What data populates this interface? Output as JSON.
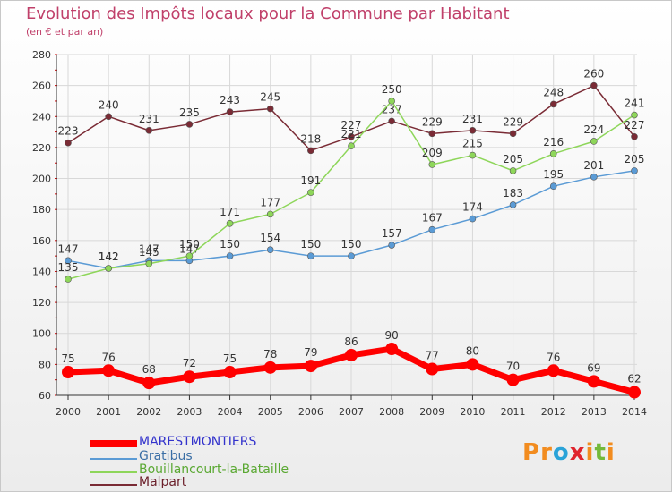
{
  "header": {
    "title": "Evolution des Impôts locaux pour la Commune par Habitant",
    "subtitle": "(en € et par an)"
  },
  "logo": {
    "text": "Proxiti",
    "letters": [
      "P",
      "r",
      "o",
      "x",
      "i",
      "t",
      "i"
    ],
    "colors": [
      "#f28c1f",
      "#f28c1f",
      "#2aa3d8",
      "#e0242d",
      "#f28c1f",
      "#74b93a",
      "#f28c1f"
    ]
  },
  "chart_data": {
    "type": "line",
    "title": "Evolution des Impôts locaux pour la Commune par Habitant",
    "subtitle": "(en € et par an)",
    "xlabel": "",
    "ylabel": "",
    "ylim": [
      60,
      280
    ],
    "yticks": [
      60,
      80,
      100,
      120,
      140,
      160,
      180,
      200,
      220,
      240,
      260,
      280
    ],
    "grid": true,
    "legend": "bottom-left",
    "categories": [
      "2000",
      "2001",
      "2002",
      "2003",
      "2004",
      "2005",
      "2006",
      "2007",
      "2008",
      "2009",
      "2010",
      "2011",
      "2012",
      "2013",
      "2014"
    ],
    "series": [
      {
        "name": "MARESTMONTIERS",
        "color": "#ff0000",
        "labelColor": "#3333cc",
        "values": [
          75,
          76,
          68,
          72,
          75,
          78,
          79,
          86,
          90,
          77,
          80,
          70,
          76,
          69,
          62
        ]
      },
      {
        "name": "Gratibus",
        "color": "#5b9bd5",
        "labelColor": "#3a6ea5",
        "values": [
          147,
          142,
          147,
          147,
          150,
          154,
          150,
          150,
          157,
          167,
          174,
          183,
          195,
          201,
          205
        ]
      },
      {
        "name": "Bouillancourt-la-Bataille",
        "color": "#8ed65a",
        "labelColor": "#5aa832",
        "values": [
          135,
          142,
          145,
          150,
          171,
          177,
          191,
          221,
          250,
          209,
          215,
          205,
          216,
          224,
          241
        ]
      },
      {
        "name": "Malpart",
        "color": "#7a2b35",
        "labelColor": "#6b1f2a",
        "values": [
          223,
          240,
          231,
          235,
          243,
          245,
          218,
          227,
          237,
          229,
          231,
          229,
          248,
          260,
          227
        ]
      }
    ]
  }
}
